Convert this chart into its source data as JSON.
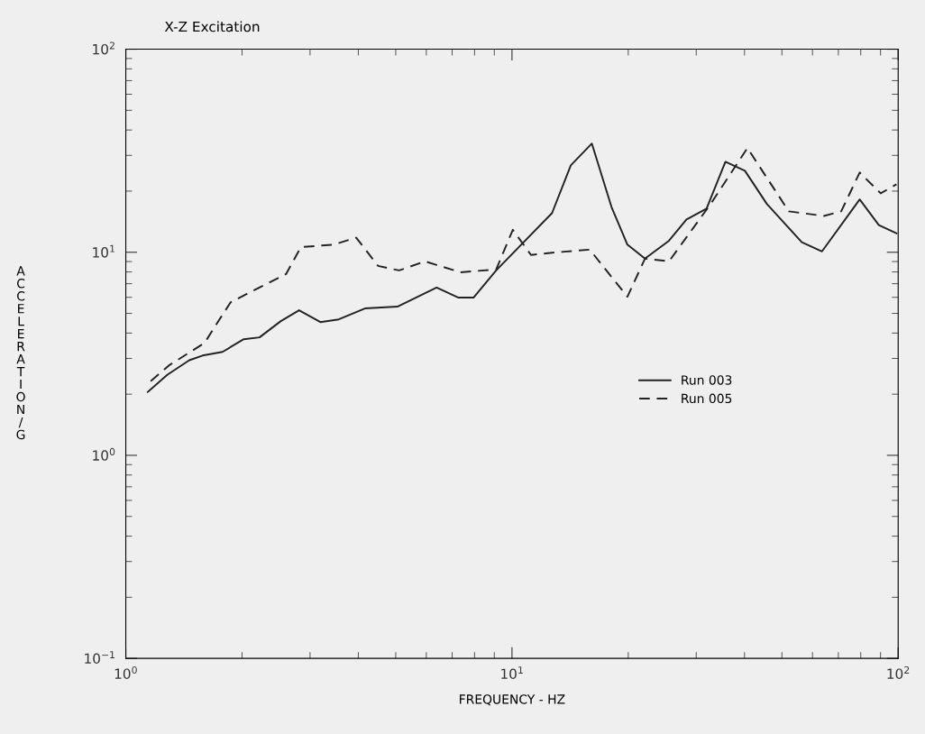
{
  "chart_data": {
    "type": "line",
    "title": "X-Z Excitation",
    "xlabel": "FREQUENCY - HZ",
    "ylabel": "ACCELERATION/G",
    "log": "xy",
    "grid": false,
    "legend": "right",
    "marker": "none",
    "xlim": [
      1,
      100
    ],
    "ylim": [
      0.1,
      100
    ],
    "xticks": [
      {
        "value": 1,
        "label": "10$^{0}$"
      },
      {
        "value": 10,
        "label": "10$^{1}$"
      },
      {
        "value": 100,
        "label": "10$^{2}$"
      }
    ],
    "yticks": [
      {
        "value": 0.1,
        "label": "10$^{−1}$"
      },
      {
        "value": 1,
        "label": "10$^{0}$"
      },
      {
        "value": 10,
        "label": "10$^{1}$"
      },
      {
        "value": 100,
        "label": "10$^{2}$"
      }
    ],
    "series": [
      {
        "name": "Run 003",
        "color": "#222222",
        "line_style": "solid",
        "x": [
          1.14,
          1.28,
          1.46,
          1.58,
          1.78,
          2.02,
          2.22,
          2.52,
          2.81,
          3.19,
          3.56,
          4.16,
          5.05,
          6.38,
          7.27,
          7.95,
          9.1,
          12.7,
          14.2,
          16.1,
          18.1,
          19.9,
          22.1,
          25.5,
          28.3,
          31.9,
          35.7,
          40.1,
          45.7,
          56.3,
          63.5,
          79.5,
          89.1,
          99
        ],
        "values": [
          2.05,
          2.49,
          2.94,
          3.1,
          3.23,
          3.73,
          3.81,
          4.58,
          5.18,
          4.53,
          4.67,
          5.29,
          5.4,
          6.7,
          5.98,
          5.98,
          8.14,
          15.6,
          26.8,
          34.3,
          16.7,
          10.9,
          9.3,
          11.4,
          14.5,
          16.4,
          27.9,
          25.2,
          17.3,
          11.2,
          10.1,
          18.2,
          13.6,
          12.4
        ]
      },
      {
        "name": "Run 005",
        "color": "#222222",
        "line_style": "dashed",
        "x": [
          1.16,
          1.3,
          1.6,
          1.73,
          1.87,
          2.6,
          2.84,
          3.45,
          3.95,
          4.5,
          5.1,
          5.96,
          6.38,
          7.35,
          9.1,
          10.05,
          11.2,
          13.1,
          15.9,
          19.9,
          22.1,
          25.5,
          32.7,
          40.7,
          52.1,
          64.2,
          71.2,
          79.5,
          90.1,
          99
        ],
        "values": [
          2.32,
          2.79,
          3.58,
          4.53,
          5.68,
          7.81,
          10.6,
          10.9,
          11.8,
          8.57,
          8.14,
          9.02,
          8.66,
          7.97,
          8.23,
          12.9,
          9.7,
          10.0,
          10.3,
          6.04,
          9.3,
          9.02,
          17.3,
          32.6,
          15.9,
          15.1,
          15.9,
          24.7,
          19.5,
          21.6
        ]
      }
    ]
  }
}
